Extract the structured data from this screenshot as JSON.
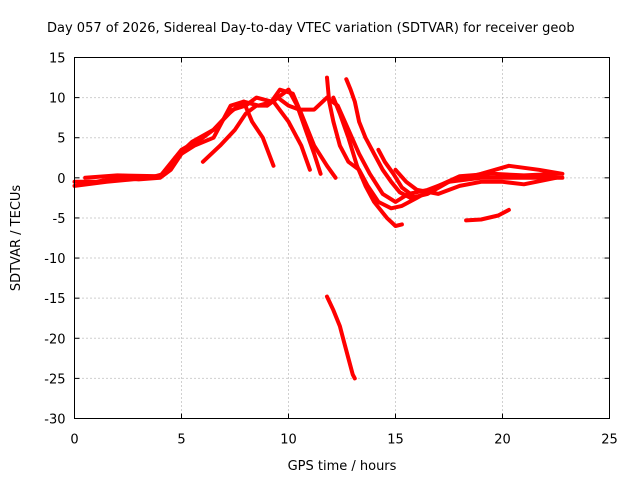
{
  "chart_data": {
    "type": "line",
    "title": "Day 057 of 2026, Sidereal Day-to-day VTEC variation (SDTVAR) for receiver geob",
    "xlabel": "GPS time / hours",
    "ylabel": "SDTVAR / TECUs",
    "xlim": [
      0,
      25
    ],
    "ylim": [
      -30,
      15
    ],
    "xticks": [
      0,
      5,
      10,
      15,
      20,
      25
    ],
    "yticks": [
      15,
      10,
      5,
      0,
      -5,
      -10,
      -15,
      -20,
      -25,
      -30
    ],
    "grid": true,
    "color": "#ff0000",
    "series": [
      {
        "name": "s1",
        "values": [
          [
            0,
            -0.5
          ],
          [
            1,
            -0.5
          ],
          [
            2,
            0
          ],
          [
            3,
            -0.2
          ],
          [
            4,
            0
          ],
          [
            4.5,
            1
          ],
          [
            5,
            3
          ],
          [
            5.6,
            4
          ],
          [
            6.5,
            5
          ],
          [
            7.3,
            9
          ],
          [
            7.9,
            9.5
          ],
          [
            8.3,
            7
          ],
          [
            8.8,
            5
          ],
          [
            9.3,
            1.5
          ]
        ]
      },
      {
        "name": "s2",
        "values": [
          [
            0,
            -1
          ],
          [
            1.5,
            -0.5
          ],
          [
            3.5,
            0
          ],
          [
            4.2,
            0.5
          ],
          [
            4.7,
            2.5
          ],
          [
            5.5,
            4.5
          ],
          [
            6.5,
            6
          ],
          [
            7.2,
            8
          ],
          [
            7.9,
            9.5
          ],
          [
            8.6,
            9
          ],
          [
            9.3,
            9.5
          ],
          [
            10,
            7
          ],
          [
            10.6,
            4
          ],
          [
            11,
            1
          ]
        ]
      },
      {
        "name": "s3",
        "values": [
          [
            0.5,
            0
          ],
          [
            2,
            0.3
          ],
          [
            4,
            0.2
          ],
          [
            5,
            3.5
          ],
          [
            6,
            5
          ],
          [
            6.5,
            6
          ],
          [
            7.4,
            8.5
          ],
          [
            8,
            9
          ],
          [
            8.5,
            10
          ],
          [
            9.2,
            9.5
          ],
          [
            9.6,
            11
          ],
          [
            10.2,
            10.5
          ],
          [
            10.6,
            8
          ],
          [
            11.2,
            4
          ],
          [
            11.8,
            1.5
          ],
          [
            12.2,
            0
          ]
        ]
      },
      {
        "name": "s4",
        "values": [
          [
            9,
            9
          ],
          [
            9.5,
            10
          ],
          [
            10,
            11
          ],
          [
            10.4,
            9
          ],
          [
            10.8,
            6
          ],
          [
            11.2,
            3
          ],
          [
            11.5,
            0.5
          ]
        ]
      },
      {
        "name": "s5",
        "values": [
          [
            6,
            2
          ],
          [
            6.8,
            4
          ],
          [
            7.5,
            6
          ],
          [
            8,
            8
          ],
          [
            8.5,
            9
          ],
          [
            9,
            9
          ],
          [
            9.5,
            10
          ],
          [
            10,
            9
          ],
          [
            10.5,
            8.5
          ],
          [
            11.2,
            8.5
          ],
          [
            11.8,
            10
          ],
          [
            12.3,
            9
          ],
          [
            12.8,
            6
          ],
          [
            13.3,
            3
          ],
          [
            13.8,
            0.5
          ],
          [
            14.4,
            -2
          ],
          [
            15,
            -3
          ],
          [
            15.6,
            -2
          ],
          [
            16.5,
            -1.5
          ],
          [
            17.5,
            -0.5
          ],
          [
            19,
            0
          ],
          [
            20.5,
            0
          ],
          [
            22,
            0
          ],
          [
            22.8,
            0
          ]
        ]
      },
      {
        "name": "s6",
        "values": [
          [
            11.8,
            12.5
          ],
          [
            11.9,
            9.5
          ],
          [
            12.1,
            7
          ],
          [
            12.4,
            4
          ],
          [
            12.8,
            2
          ],
          [
            13.3,
            1
          ],
          [
            13.7,
            -1
          ],
          [
            14.2,
            -3
          ],
          [
            14.8,
            -3.8
          ],
          [
            15.3,
            -3.5
          ],
          [
            16,
            -2.5
          ],
          [
            17,
            -1
          ],
          [
            18,
            0.2
          ],
          [
            19.5,
            0.5
          ],
          [
            21,
            0.3
          ],
          [
            22.7,
            0.5
          ]
        ]
      },
      {
        "name": "s7",
        "values": [
          [
            12.7,
            12.3
          ],
          [
            12.9,
            11
          ],
          [
            13.1,
            9.5
          ],
          [
            13.3,
            7
          ],
          [
            13.6,
            5
          ],
          [
            14,
            3
          ],
          [
            14.4,
            1
          ],
          [
            14.8,
            -0.5
          ],
          [
            15.2,
            -1.8
          ],
          [
            15.7,
            -2.5
          ],
          [
            16.5,
            -2
          ],
          [
            17.5,
            -0.5
          ],
          [
            19,
            0.5
          ],
          [
            20.3,
            1.5
          ],
          [
            21.7,
            1
          ],
          [
            22.8,
            0.5
          ]
        ]
      },
      {
        "name": "s8",
        "values": [
          [
            12.1,
            10
          ],
          [
            12.4,
            8
          ],
          [
            12.8,
            5
          ],
          [
            13.2,
            1.5
          ],
          [
            13.6,
            -1
          ],
          [
            14,
            -3
          ],
          [
            14.6,
            -5
          ],
          [
            15,
            -6
          ],
          [
            15.3,
            -5.8
          ]
        ]
      },
      {
        "name": "s9",
        "values": [
          [
            14.2,
            3.5
          ],
          [
            14.5,
            2
          ],
          [
            14.9,
            0.5
          ],
          [
            15.3,
            -1.2
          ],
          [
            15.8,
            -2.2
          ]
        ]
      },
      {
        "name": "s10",
        "values": [
          [
            15,
            1
          ],
          [
            15.5,
            -0.5
          ],
          [
            16,
            -1.5
          ],
          [
            17,
            -2
          ],
          [
            18,
            -1
          ],
          [
            19,
            -0.5
          ],
          [
            20,
            -0.5
          ],
          [
            21,
            -0.8
          ],
          [
            22.5,
            0
          ]
        ]
      },
      {
        "name": "s11",
        "values": [
          [
            20.3,
            -4
          ],
          [
            19.8,
            -4.7
          ],
          [
            19,
            -5.2
          ],
          [
            18.3,
            -5.3
          ]
        ]
      },
      {
        "name": "s12",
        "values": [
          [
            11.8,
            -14.8
          ],
          [
            12.1,
            -16.5
          ],
          [
            12.4,
            -18.5
          ],
          [
            12.6,
            -20.5
          ],
          [
            12.8,
            -22.5
          ],
          [
            13,
            -24.5
          ],
          [
            13.1,
            -25
          ]
        ]
      }
    ]
  }
}
